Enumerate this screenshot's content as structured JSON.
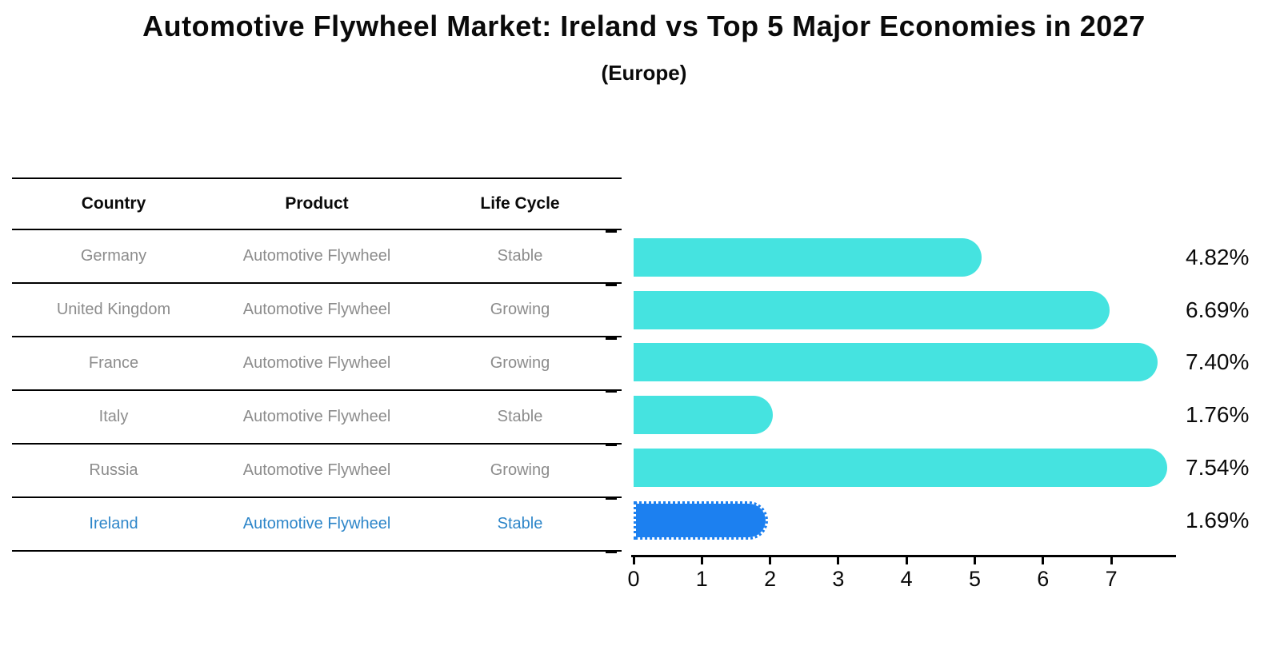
{
  "title": "Automotive Flywheel Market: Ireland vs Top 5 Major Economies in 2027",
  "subtitle": "(Europe)",
  "table": {
    "headers": [
      "Country",
      "Product",
      "Life Cycle"
    ],
    "rows": [
      {
        "country": "Germany",
        "product": "Automotive Flywheel",
        "life_cycle": "Stable",
        "highlighted": false
      },
      {
        "country": "United Kingdom",
        "product": "Automotive Flywheel",
        "life_cycle": "Growing",
        "highlighted": false
      },
      {
        "country": "France",
        "product": "Automotive Flywheel",
        "life_cycle": "Growing",
        "highlighted": false
      },
      {
        "country": "Italy",
        "product": "Automotive Flywheel",
        "life_cycle": "Stable",
        "highlighted": false
      },
      {
        "country": "Russia",
        "product": "Automotive Flywheel",
        "life_cycle": "Growing",
        "highlighted": false
      },
      {
        "country": "Ireland",
        "product": "Automotive Flywheel",
        "life_cycle": "Stable",
        "highlighted": true
      }
    ]
  },
  "chart_data": {
    "type": "bar",
    "orientation": "horizontal",
    "title": "Automotive Flywheel Market: Ireland vs Top 5 Major Economies in 2027",
    "subtitle": "(Europe)",
    "categories": [
      "Germany",
      "United Kingdom",
      "France",
      "Italy",
      "Russia",
      "Ireland"
    ],
    "values": [
      4.82,
      6.69,
      7.4,
      1.76,
      7.54,
      1.69
    ],
    "value_labels": [
      "4.82%",
      "6.69%",
      "7.40%",
      "1.76%",
      "7.54%",
      "1.69%"
    ],
    "unit": "%",
    "xlim": [
      0,
      8
    ],
    "x_ticks": [
      0,
      1,
      2,
      3,
      4,
      5,
      6,
      7
    ],
    "grid": false,
    "legend": "none",
    "bar_color": "#45E3E0",
    "highlight_bar_color": "#1C80F0",
    "highlight_index": 5
  },
  "colors": {
    "background": "#FFFFFF",
    "bar": "#45E3E0",
    "highlight_bar": "#1C80F0",
    "highlight_text": "#2E86C9",
    "table_text": "#8C8C8C",
    "table_header_text": "#0A0A0A",
    "axis": "#000000"
  }
}
